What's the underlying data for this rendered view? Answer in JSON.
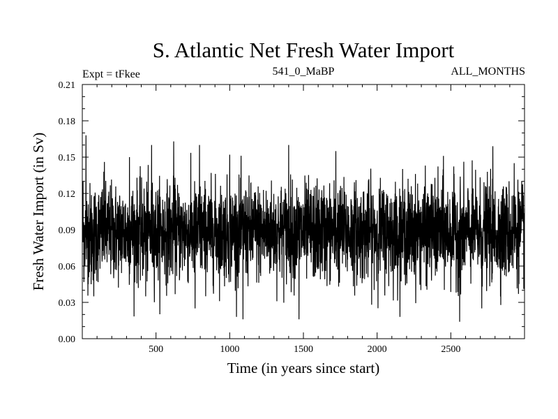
{
  "chart_data": {
    "type": "line",
    "title": "S. Atlantic Net Fresh Water Import",
    "subtitle_left": "Expt = tFkee",
    "subtitle_center": "541_0_MaBP",
    "subtitle_right": "ALL_MONTHS",
    "xlabel": "Time (in years since start)",
    "ylabel": "Fresh Water Import (in Sv)",
    "xlim": [
      0,
      3000
    ],
    "ylim": [
      0,
      0.21
    ],
    "xticks": [
      500,
      1000,
      1500,
      2000,
      2500
    ],
    "xtick_labels": [
      "500",
      "1000",
      "1500",
      "2000",
      "2500"
    ],
    "yticks": [
      0,
      0.03,
      0.06,
      0.09,
      0.12,
      0.15,
      0.18,
      0.21
    ],
    "ytick_labels": [
      "0.00",
      "0.03",
      "0.06",
      "0.09",
      "0.12",
      "0.15",
      "0.18",
      "0.21"
    ],
    "grid": false,
    "series": [
      {
        "color": "#000000",
        "n_points": 3000,
        "x_start": 1,
        "x_step": 1,
        "mean": 0.088,
        "std": 0.02,
        "min": 0.014,
        "max": 0.168,
        "anchors": [
          {
            "x": 5,
            "y": 0.13
          },
          {
            "x": 25,
            "y": 0.168
          },
          {
            "x": 40,
            "y": 0.045
          },
          {
            "x": 60,
            "y": 0.045
          },
          {
            "x": 78,
            "y": 0.035
          },
          {
            "x": 150,
            "y": 0.146
          },
          {
            "x": 320,
            "y": 0.15
          },
          {
            "x": 430,
            "y": 0.035
          },
          {
            "x": 470,
            "y": 0.16
          },
          {
            "x": 620,
            "y": 0.163
          },
          {
            "x": 765,
            "y": 0.025
          },
          {
            "x": 795,
            "y": 0.16
          },
          {
            "x": 1000,
            "y": 0.152
          },
          {
            "x": 1090,
            "y": 0.016
          },
          {
            "x": 1400,
            "y": 0.16
          },
          {
            "x": 1470,
            "y": 0.016
          },
          {
            "x": 1720,
            "y": 0.155
          },
          {
            "x": 2450,
            "y": 0.151
          },
          {
            "x": 2560,
            "y": 0.014
          },
          {
            "x": 2710,
            "y": 0.025
          },
          {
            "x": 2785,
            "y": 0.159
          },
          {
            "x": 2930,
            "y": 0.145
          }
        ]
      }
    ]
  }
}
